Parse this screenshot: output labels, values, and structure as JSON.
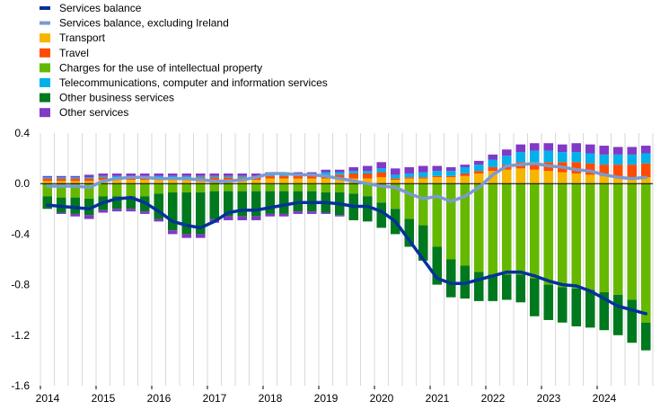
{
  "chart_data": {
    "type": "bar",
    "title": "",
    "xlabel": "",
    "ylabel": "",
    "ylim": [
      -1.6,
      0.4
    ],
    "yticks": [
      0.4,
      0.0,
      -0.4,
      -0.8,
      -1.2,
      -1.6
    ],
    "ytick_labels": [
      "0.4",
      "0.0",
      "-0.4",
      "-0.8",
      "-1.2",
      "-1.6"
    ],
    "grid": true,
    "legend_position": "top-left",
    "year_labels": [
      "2014",
      "2015",
      "2016",
      "2017",
      "2018",
      "2019",
      "2020",
      "2021",
      "2022",
      "2023",
      "2024"
    ],
    "quarters": [
      "2014Q1",
      "2014Q2",
      "2014Q3",
      "2014Q4",
      "2015Q1",
      "2015Q2",
      "2015Q3",
      "2015Q4",
      "2016Q1",
      "2016Q2",
      "2016Q3",
      "2016Q4",
      "2017Q1",
      "2017Q2",
      "2017Q3",
      "2017Q4",
      "2018Q1",
      "2018Q2",
      "2018Q3",
      "2018Q4",
      "2019Q1",
      "2019Q2",
      "2019Q3",
      "2019Q4",
      "2020Q1",
      "2020Q2",
      "2020Q3",
      "2020Q4",
      "2021Q1",
      "2021Q2",
      "2021Q3",
      "2021Q4",
      "2022Q1",
      "2022Q2",
      "2022Q3",
      "2022Q4",
      "2023Q1",
      "2023Q2",
      "2023Q3",
      "2023Q4",
      "2024Q1",
      "2024Q2",
      "2024Q3",
      "2024Q4"
    ],
    "bar_series": [
      {
        "name": "Transport",
        "color": "#F7B500",
        "values": [
          0.02,
          0.02,
          0.02,
          0.02,
          0.03,
          0.03,
          0.03,
          0.03,
          0.03,
          0.03,
          0.03,
          0.03,
          0.03,
          0.03,
          0.03,
          0.03,
          0.04,
          0.04,
          0.04,
          0.04,
          0.04,
          0.04,
          0.04,
          0.04,
          0.05,
          0.03,
          0.04,
          0.04,
          0.05,
          0.05,
          0.06,
          0.08,
          0.1,
          0.11,
          0.12,
          0.11,
          0.1,
          0.09,
          0.08,
          0.07,
          0.06,
          0.05,
          0.05,
          0.05
        ]
      },
      {
        "name": "Travel",
        "color": "#FF4B00",
        "values": [
          0.02,
          0.02,
          0.02,
          0.02,
          0.02,
          0.02,
          0.02,
          0.02,
          0.02,
          0.02,
          0.02,
          0.02,
          0.02,
          0.02,
          0.02,
          0.02,
          0.02,
          0.02,
          0.02,
          0.02,
          0.03,
          0.03,
          0.04,
          0.04,
          0.04,
          0.01,
          0.01,
          0.01,
          0.01,
          0.01,
          0.02,
          0.02,
          0.03,
          0.04,
          0.05,
          0.06,
          0.07,
          0.08,
          0.09,
          0.09,
          0.09,
          0.1,
          0.1,
          0.11
        ]
      },
      {
        "name": "Charges for the use of intellectual property",
        "color": "#65B800",
        "values": [
          -0.1,
          -0.11,
          -0.11,
          -0.12,
          -0.1,
          -0.1,
          -0.1,
          -0.1,
          -0.08,
          -0.07,
          -0.07,
          -0.07,
          -0.06,
          -0.06,
          -0.06,
          -0.06,
          -0.06,
          -0.06,
          -0.06,
          -0.06,
          -0.07,
          -0.07,
          -0.08,
          -0.1,
          -0.15,
          -0.2,
          -0.28,
          -0.33,
          -0.5,
          -0.6,
          -0.65,
          -0.7,
          -0.72,
          -0.72,
          -0.72,
          -0.75,
          -0.8,
          -0.82,
          -0.83,
          -0.84,
          -0.86,
          -0.88,
          -0.92,
          -1.1
        ]
      },
      {
        "name": "Telecommunications, computer and information services",
        "color": "#00B1EA",
        "values": [
          0.01,
          0.01,
          0.01,
          0.01,
          0.01,
          0.01,
          0.01,
          0.01,
          0.01,
          0.01,
          0.01,
          0.01,
          0.01,
          0.01,
          0.01,
          0.01,
          0.01,
          0.01,
          0.01,
          0.01,
          0.02,
          0.02,
          0.02,
          0.02,
          0.03,
          0.03,
          0.03,
          0.04,
          0.04,
          0.04,
          0.05,
          0.05,
          0.06,
          0.07,
          0.08,
          0.09,
          0.09,
          0.08,
          0.08,
          0.08,
          0.08,
          0.08,
          0.08,
          0.08
        ]
      },
      {
        "name": "Other business services",
        "color": "#00781E",
        "values": [
          -0.1,
          -0.12,
          -0.13,
          -0.13,
          -0.11,
          -0.1,
          -0.1,
          -0.12,
          -0.2,
          -0.3,
          -0.33,
          -0.33,
          -0.22,
          -0.2,
          -0.2,
          -0.2,
          -0.18,
          -0.18,
          -0.16,
          -0.16,
          -0.16,
          -0.18,
          -0.21,
          -0.2,
          -0.2,
          -0.2,
          -0.22,
          -0.28,
          -0.3,
          -0.3,
          -0.26,
          -0.23,
          -0.21,
          -0.2,
          -0.22,
          -0.3,
          -0.28,
          -0.28,
          -0.3,
          -0.3,
          -0.3,
          -0.32,
          -0.34,
          -0.22
        ]
      },
      {
        "name": "Other services",
        "color": "#8139C6",
        "values": [
          0.01,
          0.01,
          0.01,
          0.02,
          0.02,
          0.02,
          0.02,
          0.02,
          0.02,
          0.02,
          0.02,
          0.02,
          0.02,
          0.02,
          0.02,
          0.02,
          0.02,
          0.02,
          0.02,
          0.02,
          0.02,
          0.02,
          0.03,
          0.04,
          0.05,
          0.05,
          0.05,
          0.05,
          0.04,
          0.03,
          0.02,
          0.03,
          0.04,
          0.05,
          0.06,
          0.06,
          0.06,
          0.06,
          0.07,
          0.07,
          0.07,
          0.06,
          0.06,
          0.06
        ]
      }
    ],
    "extra_negative": {
      "color": "#8139C6",
      "values": [
        0,
        -0.01,
        -0.02,
        -0.03,
        -0.02,
        -0.02,
        -0.02,
        -0.02,
        -0.02,
        -0.03,
        -0.03,
        -0.03,
        -0.03,
        -0.03,
        -0.03,
        -0.03,
        -0.02,
        -0.02,
        -0.02,
        -0.02,
        -0.01,
        -0.01,
        0,
        0,
        0,
        0,
        0,
        0,
        0,
        0,
        0,
        0,
        0,
        0,
        0,
        0,
        0,
        0,
        0,
        0,
        0,
        0,
        0,
        0
      ]
    },
    "line_series": [
      {
        "name": "Services balance",
        "color": "#003299",
        "width": 3.5,
        "values": [
          -0.17,
          -0.18,
          -0.19,
          -0.2,
          -0.15,
          -0.12,
          -0.11,
          -0.15,
          -0.22,
          -0.3,
          -0.33,
          -0.35,
          -0.3,
          -0.23,
          -0.21,
          -0.21,
          -0.19,
          -0.17,
          -0.15,
          -0.15,
          -0.15,
          -0.16,
          -0.18,
          -0.18,
          -0.22,
          -0.3,
          -0.45,
          -0.6,
          -0.75,
          -0.79,
          -0.79,
          -0.76,
          -0.73,
          -0.7,
          -0.7,
          -0.73,
          -0.77,
          -0.8,
          -0.81,
          -0.85,
          -0.91,
          -0.97,
          -1.0,
          -1.03
        ]
      },
      {
        "name": "Services balance, excluding Ireland",
        "color": "#7B9ACF",
        "width": 3.5,
        "values": [
          -0.02,
          -0.02,
          -0.02,
          -0.03,
          0.02,
          0.04,
          0.05,
          0.05,
          0.04,
          0.04,
          0.04,
          0.03,
          0.02,
          0.02,
          0.03,
          0.05,
          0.08,
          0.08,
          0.07,
          0.07,
          0.06,
          0.04,
          0.02,
          0.0,
          -0.02,
          -0.03,
          -0.08,
          -0.12,
          -0.1,
          -0.14,
          -0.1,
          -0.03,
          0.07,
          0.14,
          0.15,
          0.16,
          0.14,
          0.13,
          0.11,
          0.1,
          0.07,
          0.05,
          0.04,
          0.05
        ]
      }
    ]
  },
  "legend": [
    {
      "label": "Services balance",
      "color": "#003299",
      "kind": "line"
    },
    {
      "label": "Services balance, excluding Ireland",
      "color": "#7B9ACF",
      "kind": "line"
    },
    {
      "label": "Transport",
      "color": "#F7B500",
      "kind": "box"
    },
    {
      "label": "Travel",
      "color": "#FF4B00",
      "kind": "box"
    },
    {
      "label": "Charges for the use of intellectual property",
      "color": "#65B800",
      "kind": "box"
    },
    {
      "label": "Telecommunications, computer and information services",
      "color": "#00B1EA",
      "kind": "box"
    },
    {
      "label": "Other business services",
      "color": "#00781E",
      "kind": "box"
    },
    {
      "label": "Other services",
      "color": "#8139C6",
      "kind": "box"
    }
  ]
}
